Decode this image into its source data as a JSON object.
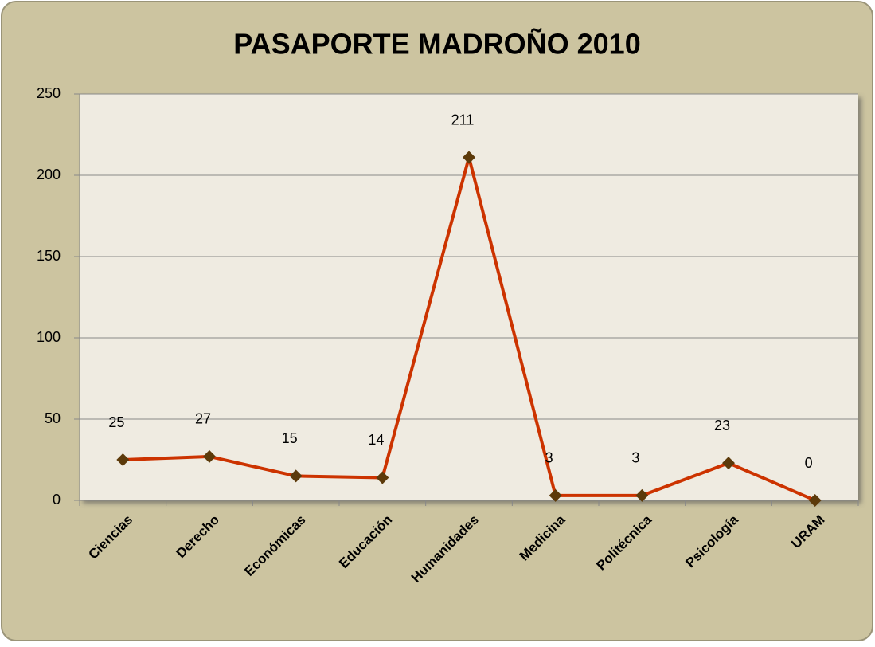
{
  "chart_data": {
    "type": "line",
    "title": "PASAPORTE MADROÑO 2010",
    "categories": [
      "Ciencias",
      "Derecho",
      "Económicas",
      "Educación",
      "Humanidades",
      "Medicina",
      "Politécnica",
      "Psicología",
      "URAM"
    ],
    "series": [
      {
        "name": "PASAPORTE MADROÑO 2010",
        "color": "#cc3300",
        "marker_color": "#5c3a0a",
        "values": [
          25,
          27,
          15,
          14,
          211,
          3,
          3,
          23,
          0
        ]
      }
    ],
    "ylim": [
      0,
      250
    ],
    "yticks": [
      0,
      50,
      100,
      150,
      200,
      250
    ],
    "grid": true
  }
}
